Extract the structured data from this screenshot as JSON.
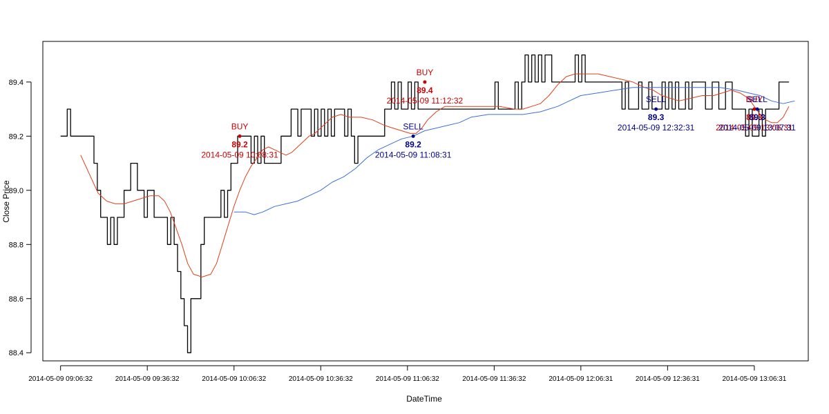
{
  "chart_data": {
    "type": "line",
    "xlabel": "DateTime",
    "ylabel": "Close Price",
    "ylim": [
      88.37,
      89.55
    ],
    "y_ticks": [
      88.4,
      88.6,
      88.8,
      89.0,
      89.2,
      89.4
    ],
    "y_tick_labels": [
      "88.4",
      "88.6",
      "88.8",
      "89.0",
      "89.2",
      "89.4"
    ],
    "x_domain": [
      "2014-05-09 09:06:32",
      "2014-05-09 13:18:31"
    ],
    "x_xlim": [
      "2014-05-09 09:00:24",
      "2014-05-09 13:25:11"
    ],
    "x_ticks": [
      "2014-05-09 09:06:32",
      "2014-05-09 09:36:32",
      "2014-05-09 10:06:32",
      "2014-05-09 10:36:32",
      "2014-05-09 11:06:32",
      "2014-05-09 11:36:32",
      "2014-05-09 12:06:31",
      "2014-05-09 12:36:31",
      "2014-05-09 13:06:31"
    ],
    "x_tick_labels": [
      "2014-05-09 09:06:32",
      "2014-05-09 09:36:32",
      "2014-05-09 10:06:32",
      "2014-05-09 10:36:32",
      "2014-05-09 11:06:32",
      "2014-05-09 11:36:32",
      "2014-05-09 12:06:31",
      "2014-05-09 12:36:31",
      "2014-05-09 13:06:31"
    ],
    "grid": false,
    "series": [
      {
        "key": "close",
        "color": "#000000",
        "step": true,
        "values": [
          89.2,
          89.2,
          89.3,
          89.2,
          89.2,
          89.2,
          89.2,
          89.2,
          89.2,
          89.2,
          89.1,
          89.0,
          88.9,
          88.9,
          88.8,
          88.9,
          88.8,
          88.9,
          88.9,
          89.0,
          89.0,
          89.1,
          89.1,
          89.0,
          89.0,
          88.9,
          89.0,
          89.0,
          88.9,
          88.9,
          88.9,
          88.9,
          88.8,
          88.9,
          88.8,
          88.7,
          88.6,
          88.5,
          88.4,
          88.6,
          88.6,
          88.6,
          88.8,
          88.9,
          88.9,
          88.9,
          88.9,
          88.9,
          89.0,
          88.9,
          89.0,
          89.1,
          89.1,
          89.2,
          89.2,
          89.2,
          89.2,
          89.1,
          89.2,
          89.1,
          89.2,
          89.1,
          89.1,
          89.1,
          89.1,
          89.1,
          89.2,
          89.2,
          89.2,
          89.3,
          89.3,
          89.2,
          89.3,
          89.3,
          89.3,
          89.2,
          89.3,
          89.2,
          89.3,
          89.2,
          89.3,
          89.2,
          89.3,
          89.3,
          89.3,
          89.2,
          89.3,
          89.2,
          89.1,
          89.2,
          89.2,
          89.2,
          89.2,
          89.2,
          89.2,
          89.2,
          89.2,
          89.3,
          89.3,
          89.4,
          89.3,
          89.4,
          89.3,
          89.3,
          89.4,
          89.3,
          89.4,
          89.3,
          89.3,
          89.3,
          89.3,
          89.3,
          89.3,
          89.3,
          89.3,
          89.3,
          89.3,
          89.3,
          89.3,
          89.3,
          89.3,
          89.3,
          89.3,
          89.3,
          89.3,
          89.3,
          89.3,
          89.3,
          89.3,
          89.3,
          89.4,
          89.3,
          89.3,
          89.3,
          89.3,
          89.3,
          89.4,
          89.3,
          89.4,
          89.5,
          89.4,
          89.5,
          89.4,
          89.5,
          89.4,
          89.5,
          89.5,
          89.4,
          89.4,
          89.4,
          89.4,
          89.4,
          89.4,
          89.4,
          89.5,
          89.4,
          89.5,
          89.4,
          89.4,
          89.4,
          89.4,
          89.4,
          89.4,
          89.4,
          89.4,
          89.4,
          89.4,
          89.4,
          89.3,
          89.4,
          89.3,
          89.3,
          89.3,
          89.4,
          89.3,
          89.3,
          89.4,
          89.3,
          89.3,
          89.3,
          89.4,
          89.3,
          89.4,
          89.3,
          89.4,
          89.3,
          89.3,
          89.4,
          89.3,
          89.4,
          89.4,
          89.4,
          89.4,
          89.3,
          89.3,
          89.4,
          89.4,
          89.3,
          89.3,
          89.4,
          89.4,
          89.3,
          89.3,
          89.3,
          89.3,
          89.2,
          89.3,
          89.2,
          89.2,
          89.3,
          89.2,
          89.3,
          89.3,
          89.3,
          89.3,
          89.4,
          89.4,
          89.4,
          89.4
        ]
      },
      {
        "key": "fast_ma",
        "color": "#e0401a",
        "points": [
          [
            "2014-05-09 09:13:30",
            89.13
          ],
          [
            "2014-05-09 09:16:30",
            89.06
          ],
          [
            "2014-05-09 09:19:30",
            88.99
          ],
          [
            "2014-05-09 09:22:30",
            88.96
          ],
          [
            "2014-05-09 09:25:30",
            88.95
          ],
          [
            "2014-05-09 09:28:30",
            88.95
          ],
          [
            "2014-05-09 09:31:30",
            88.96
          ],
          [
            "2014-05-09 09:34:30",
            88.97
          ],
          [
            "2014-05-09 09:37:30",
            88.98
          ],
          [
            "2014-05-09 09:40:30",
            88.98
          ],
          [
            "2014-05-09 09:42:30",
            88.96
          ],
          [
            "2014-05-09 09:44:30",
            88.92
          ],
          [
            "2014-05-09 09:46:30",
            88.86
          ],
          [
            "2014-05-09 09:48:30",
            88.8
          ],
          [
            "2014-05-09 09:50:30",
            88.73
          ],
          [
            "2014-05-09 09:52:30",
            88.69
          ],
          [
            "2014-05-09 09:55:30",
            88.68
          ],
          [
            "2014-05-09 09:58:30",
            88.69
          ],
          [
            "2014-05-09 10:00:30",
            88.73
          ],
          [
            "2014-05-09 10:02:30",
            88.8
          ],
          [
            "2014-05-09 10:04:30",
            88.87
          ],
          [
            "2014-05-09 10:06:30",
            88.94
          ],
          [
            "2014-05-09 10:08:30",
            89.0
          ],
          [
            "2014-05-09 10:10:30",
            89.05
          ],
          [
            "2014-05-09 10:12:30",
            89.09
          ],
          [
            "2014-05-09 10:14:30",
            89.12
          ],
          [
            "2014-05-09 10:16:30",
            89.15
          ],
          [
            "2014-05-09 10:18:30",
            89.16
          ],
          [
            "2014-05-09 10:20:30",
            89.15
          ],
          [
            "2014-05-09 10:22:30",
            89.14
          ],
          [
            "2014-05-09 10:24:30",
            89.13
          ],
          [
            "2014-05-09 10:26:30",
            89.14
          ],
          [
            "2014-05-09 10:28:30",
            89.16
          ],
          [
            "2014-05-09 10:30:30",
            89.18
          ],
          [
            "2014-05-09 10:32:30",
            89.2
          ],
          [
            "2014-05-09 10:34:30",
            89.21
          ],
          [
            "2014-05-09 10:36:30",
            89.23
          ],
          [
            "2014-05-09 10:38:30",
            89.25
          ],
          [
            "2014-05-09 10:40:30",
            89.27
          ],
          [
            "2014-05-09 10:43:30",
            89.28
          ],
          [
            "2014-05-09 10:46:30",
            89.27
          ],
          [
            "2014-05-09 10:50:30",
            89.27
          ],
          [
            "2014-05-09 10:54:30",
            89.26
          ],
          [
            "2014-05-09 10:58:30",
            89.24
          ],
          [
            "2014-05-09 11:01:30",
            89.23
          ],
          [
            "2014-05-09 11:04:30",
            89.22
          ],
          [
            "2014-05-09 11:07:30",
            89.21
          ],
          [
            "2014-05-09 11:09:30",
            89.21
          ],
          [
            "2014-05-09 11:11:30",
            89.23
          ],
          [
            "2014-05-09 11:13:30",
            89.26
          ],
          [
            "2014-05-09 11:16:30",
            89.29
          ],
          [
            "2014-05-09 11:19:30",
            89.31
          ],
          [
            "2014-05-09 11:23:30",
            89.31
          ],
          [
            "2014-05-09 11:28:30",
            89.31
          ],
          [
            "2014-05-09 11:33:30",
            89.31
          ],
          [
            "2014-05-09 11:38:30",
            89.31
          ],
          [
            "2014-05-09 11:43:30",
            89.3
          ],
          [
            "2014-05-09 11:46:30",
            89.3
          ],
          [
            "2014-05-09 11:49:30",
            89.31
          ],
          [
            "2014-05-09 11:52:30",
            89.32
          ],
          [
            "2014-05-09 11:55:30",
            89.35
          ],
          [
            "2014-05-09 11:58:30",
            89.39
          ],
          [
            "2014-05-09 12:01:30",
            89.42
          ],
          [
            "2014-05-09 12:04:30",
            89.43
          ],
          [
            "2014-05-09 12:08:30",
            89.43
          ],
          [
            "2014-05-09 12:12:30",
            89.43
          ],
          [
            "2014-05-09 12:16:30",
            89.42
          ],
          [
            "2014-05-09 12:20:30",
            89.41
          ],
          [
            "2014-05-09 12:24:30",
            89.4
          ],
          [
            "2014-05-09 12:28:30",
            89.38
          ],
          [
            "2014-05-09 12:31:30",
            89.37
          ],
          [
            "2014-05-09 12:34:30",
            89.35
          ],
          [
            "2014-05-09 12:37:30",
            89.34
          ],
          [
            "2014-05-09 12:40:30",
            89.33
          ],
          [
            "2014-05-09 12:44:30",
            89.34
          ],
          [
            "2014-05-09 12:48:30",
            89.35
          ],
          [
            "2014-05-09 12:52:30",
            89.35
          ],
          [
            "2014-05-09 12:55:30",
            89.36
          ],
          [
            "2014-05-09 12:58:30",
            89.37
          ],
          [
            "2014-05-09 13:01:30",
            89.36
          ],
          [
            "2014-05-09 13:04:30",
            89.34
          ],
          [
            "2014-05-09 13:06:30",
            89.31
          ],
          [
            "2014-05-09 13:08:30",
            89.28
          ],
          [
            "2014-05-09 13:10:30",
            89.26
          ],
          [
            "2014-05-09 13:12:30",
            89.25
          ],
          [
            "2014-05-09 13:14:30",
            89.25
          ],
          [
            "2014-05-09 13:16:30",
            89.27
          ],
          [
            "2014-05-09 13:18:30",
            89.31
          ]
        ]
      },
      {
        "key": "slow_ma",
        "color": "#3a6fd8",
        "points": [
          [
            "2014-05-09 10:06:30",
            88.92
          ],
          [
            "2014-05-09 10:10:30",
            88.92
          ],
          [
            "2014-05-09 10:13:30",
            88.91
          ],
          [
            "2014-05-09 10:16:30",
            88.92
          ],
          [
            "2014-05-09 10:20:30",
            88.94
          ],
          [
            "2014-05-09 10:24:30",
            88.95
          ],
          [
            "2014-05-09 10:28:30",
            88.96
          ],
          [
            "2014-05-09 10:32:30",
            88.98
          ],
          [
            "2014-05-09 10:36:30",
            89.0
          ],
          [
            "2014-05-09 10:40:30",
            89.03
          ],
          [
            "2014-05-09 10:44:30",
            89.05
          ],
          [
            "2014-05-09 10:48:30",
            89.08
          ],
          [
            "2014-05-09 10:52:30",
            89.12
          ],
          [
            "2014-05-09 10:56:30",
            89.15
          ],
          [
            "2014-05-09 11:00:30",
            89.17
          ],
          [
            "2014-05-09 11:04:30",
            89.19
          ],
          [
            "2014-05-09 11:08:30",
            89.2
          ],
          [
            "2014-05-09 11:12:30",
            89.22
          ],
          [
            "2014-05-09 11:16:30",
            89.23
          ],
          [
            "2014-05-09 11:20:30",
            89.24
          ],
          [
            "2014-05-09 11:24:30",
            89.25
          ],
          [
            "2014-05-09 11:28:30",
            89.27
          ],
          [
            "2014-05-09 11:34:30",
            89.28
          ],
          [
            "2014-05-09 11:40:30",
            89.28
          ],
          [
            "2014-05-09 11:46:30",
            89.28
          ],
          [
            "2014-05-09 11:52:30",
            89.29
          ],
          [
            "2014-05-09 11:58:30",
            89.31
          ],
          [
            "2014-05-09 12:02:30",
            89.33
          ],
          [
            "2014-05-09 12:06:30",
            89.35
          ],
          [
            "2014-05-09 12:12:30",
            89.36
          ],
          [
            "2014-05-09 12:18:30",
            89.37
          ],
          [
            "2014-05-09 12:24:30",
            89.38
          ],
          [
            "2014-05-09 12:30:30",
            89.38
          ],
          [
            "2014-05-09 12:36:30",
            89.38
          ],
          [
            "2014-05-09 12:42:30",
            89.38
          ],
          [
            "2014-05-09 12:48:30",
            89.38
          ],
          [
            "2014-05-09 12:54:30",
            89.38
          ],
          [
            "2014-05-09 13:00:30",
            89.37
          ],
          [
            "2014-05-09 13:04:30",
            89.36
          ],
          [
            "2014-05-09 13:08:30",
            89.35
          ],
          [
            "2014-05-09 13:12:30",
            89.33
          ],
          [
            "2014-05-09 13:16:30",
            89.32
          ],
          [
            "2014-05-09 13:20:30",
            89.33
          ]
        ]
      }
    ],
    "trades": [
      {
        "action": "BUY",
        "price": 89.2,
        "price_label": "89.2",
        "time": "2014-05-09 10:08:31",
        "time_label": "2014-05-09 10:08:31",
        "color": "#cc0000"
      },
      {
        "action": "SELL",
        "price": 89.2,
        "price_label": "89.2",
        "time": "2014-05-09 11:08:31",
        "time_label": "2014-05-09 11:08:31",
        "color": "#00008b"
      },
      {
        "action": "BUY",
        "price": 89.4,
        "price_label": "89.4",
        "time": "2014-05-09 11:12:32",
        "time_label": "2014-05-09 11:12:32",
        "color": "#cc0000"
      },
      {
        "action": "SELL",
        "price": 89.3,
        "price_label": "89.3",
        "time": "2014-05-09 12:32:31",
        "time_label": "2014-05-09 12:32:31",
        "color": "#00008b"
      },
      {
        "action": "BUY",
        "price": 89.3,
        "price_label": "89.3",
        "time": "2014-05-09 13:06:31",
        "time_label": "2014-05-09 13:06:31",
        "color": "#cc0000"
      },
      {
        "action": "SELL",
        "price": 89.3,
        "price_label": "89.3",
        "time": "2014-05-09 13:07:31",
        "time_label": "2014-05-09 13:07:31",
        "color": "#00008b"
      }
    ]
  }
}
